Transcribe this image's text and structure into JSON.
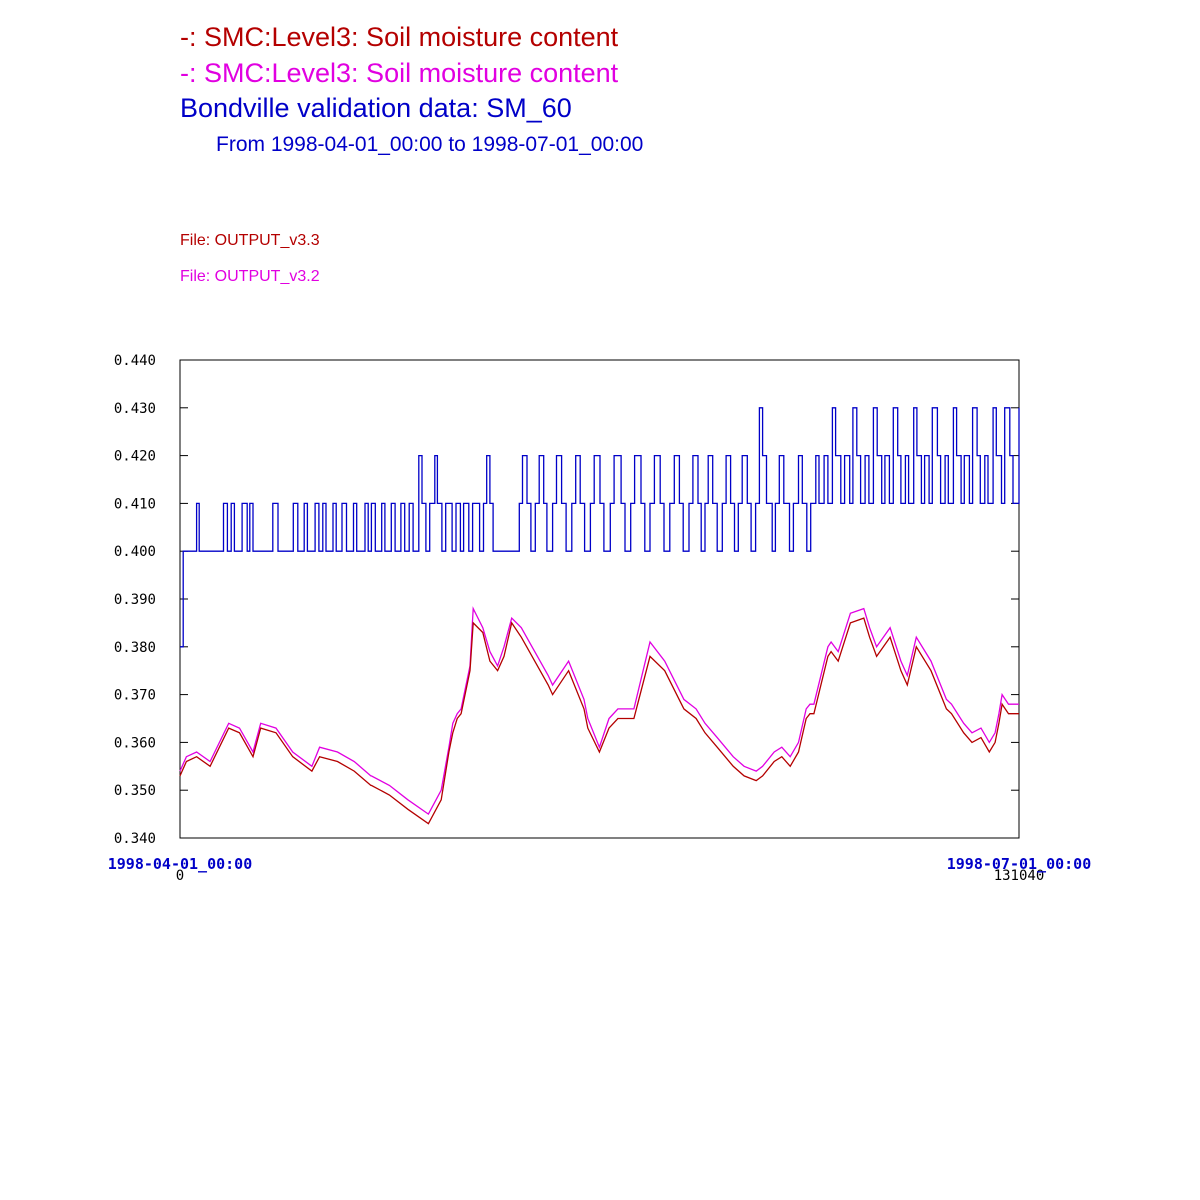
{
  "colors": {
    "v33": "#b40000",
    "v32": "#e100e1",
    "obs": "#0000c8",
    "axis": "#000000"
  },
  "header": {
    "line1": "-:  SMC:Level3: Soil moisture content",
    "line2": "-:  SMC:Level3: Soil moisture content",
    "line3": "Bondville validation data:  SM_60",
    "line4": "From 1998-04-01_00:00 to 1998-07-01_00:00",
    "file1": "File: OUTPUT_v3.3",
    "file2": "File: OUTPUT_v3.2"
  },
  "chart_data": {
    "type": "line",
    "xlim": [
      0,
      131040
    ],
    "ylim": [
      0.34,
      0.44
    ],
    "x_start_label": "1998-04-01_00:00",
    "x_end_label": "1998-07-01_00:00",
    "x_start_tick": "0",
    "x_end_tick": "131040",
    "y_ticks": [
      "0.340",
      "0.350",
      "0.360",
      "0.370",
      "0.380",
      "0.390",
      "0.400",
      "0.410",
      "0.420",
      "0.430",
      "0.440"
    ],
    "grid": false,
    "series": [
      {
        "name": "File: OUTPUT_v3.3",
        "color": "#b40000",
        "x": [
          0,
          1000,
          2600,
          4700,
          7600,
          9300,
          11400,
          12600,
          15000,
          17600,
          20600,
          21800,
          24600,
          27200,
          29800,
          29900,
          32700,
          35600,
          38800,
          40800,
          42000,
          42600,
          43300,
          43900,
          45300,
          45800,
          47300,
          48400,
          49600,
          50600,
          51800,
          53300,
          57500,
          58200,
          60700,
          63100,
          63700,
          65500,
          67000,
          68400,
          70900,
          73400,
          75700,
          78700,
          80600,
          82000,
          83900,
          86400,
          88100,
          90000,
          91000,
          92800,
          94000,
          95300,
          96600,
          97800,
          98400,
          99000,
          101200,
          101700,
          102800,
          104700,
          106800,
          107700,
          108800,
          110900,
          112600,
          113600,
          115000,
          117300,
          119700,
          120500,
          122400,
          123700,
          125100,
          126400,
          127300,
          127900,
          128400,
          129400,
          131040
        ],
        "y": [
          0.353,
          0.356,
          0.357,
          0.355,
          0.363,
          0.362,
          0.357,
          0.363,
          0.362,
          0.357,
          0.354,
          0.357,
          0.356,
          0.354,
          0.351,
          0.351,
          0.349,
          0.346,
          0.343,
          0.348,
          0.358,
          0.362,
          0.365,
          0.366,
          0.375,
          0.385,
          0.383,
          0.377,
          0.375,
          0.378,
          0.385,
          0.382,
          0.372,
          0.37,
          0.375,
          0.367,
          0.363,
          0.358,
          0.363,
          0.365,
          0.365,
          0.378,
          0.375,
          0.367,
          0.365,
          0.362,
          0.359,
          0.355,
          0.353,
          0.352,
          0.353,
          0.356,
          0.357,
          0.355,
          0.358,
          0.365,
          0.366,
          0.366,
          0.378,
          0.379,
          0.377,
          0.385,
          0.386,
          0.382,
          0.378,
          0.382,
          0.375,
          0.372,
          0.38,
          0.375,
          0.367,
          0.366,
          0.362,
          0.36,
          0.361,
          0.358,
          0.36,
          0.364,
          0.368,
          0.366,
          0.366
        ]
      },
      {
        "name": "File: OUTPUT_v3.2",
        "color": "#e100e1",
        "x": [
          0,
          1000,
          2600,
          4700,
          7600,
          9300,
          11400,
          12600,
          15000,
          17600,
          20600,
          21800,
          24600,
          27200,
          29800,
          29900,
          32700,
          35600,
          38800,
          40800,
          42000,
          42600,
          43300,
          43900,
          45300,
          45800,
          47300,
          48400,
          49600,
          50600,
          51800,
          53300,
          57500,
          58200,
          60700,
          63100,
          63700,
          65500,
          67000,
          68400,
          70900,
          73400,
          75700,
          78700,
          80600,
          82000,
          83900,
          86400,
          88100,
          90000,
          91000,
          92800,
          94000,
          95300,
          96600,
          97800,
          98400,
          99000,
          101200,
          101700,
          102800,
          104700,
          106800,
          107700,
          108800,
          110900,
          112600,
          113600,
          115000,
          117300,
          119700,
          120500,
          122400,
          123700,
          125100,
          126400,
          127300,
          127900,
          128400,
          129400,
          131040
        ],
        "y": [
          0.354,
          0.357,
          0.358,
          0.356,
          0.364,
          0.363,
          0.358,
          0.364,
          0.363,
          0.358,
          0.355,
          0.359,
          0.358,
          0.356,
          0.353,
          0.353,
          0.351,
          0.348,
          0.345,
          0.35,
          0.359,
          0.364,
          0.366,
          0.367,
          0.376,
          0.388,
          0.384,
          0.379,
          0.376,
          0.38,
          0.386,
          0.384,
          0.374,
          0.372,
          0.377,
          0.369,
          0.365,
          0.359,
          0.365,
          0.367,
          0.367,
          0.381,
          0.377,
          0.369,
          0.367,
          0.364,
          0.361,
          0.357,
          0.355,
          0.354,
          0.355,
          0.358,
          0.359,
          0.357,
          0.36,
          0.367,
          0.368,
          0.368,
          0.38,
          0.381,
          0.379,
          0.387,
          0.388,
          0.384,
          0.38,
          0.384,
          0.377,
          0.374,
          0.382,
          0.377,
          0.369,
          0.368,
          0.364,
          0.362,
          0.363,
          0.36,
          0.362,
          0.366,
          0.37,
          0.368,
          0.368
        ]
      },
      {
        "name": "Bondville validation data:  SM_60",
        "color": "#0000c8",
        "step": true,
        "x": [
          0,
          500,
          900,
          2600,
          3000,
          6800,
          7400,
          8000,
          8500,
          9700,
          10500,
          10900,
          11400,
          14500,
          15300,
          17700,
          18400,
          19400,
          19900,
          21100,
          21700,
          22300,
          22800,
          23900,
          24400,
          25300,
          26000,
          27100,
          27600,
          28900,
          29400,
          29900,
          30500,
          31500,
          32000,
          33000,
          33600,
          34500,
          35100,
          35800,
          36400,
          37300,
          37800,
          38400,
          39000,
          39800,
          40200,
          40900,
          41500,
          42500,
          43100,
          43800,
          44300,
          45100,
          45700,
          46800,
          47400,
          47900,
          48400,
          48900,
          53000,
          53500,
          54200,
          54800,
          55500,
          56100,
          56800,
          57300,
          58200,
          58800,
          59600,
          60300,
          61200,
          61800,
          62500,
          63200,
          64100,
          64700,
          65600,
          66200,
          67200,
          67800,
          68900,
          69500,
          70400,
          71000,
          72000,
          72600,
          73400,
          74100,
          75000,
          75600,
          76500,
          77200,
          78000,
          78600,
          79500,
          80100,
          80900,
          81400,
          82000,
          82500,
          83200,
          83900,
          84700,
          85300,
          86000,
          86600,
          87200,
          87800,
          88600,
          89200,
          89900,
          90500,
          91000,
          91600,
          92500,
          93000,
          93600,
          94300,
          95200,
          95800,
          96600,
          97200,
          97900,
          98500,
          99300,
          99800,
          100600,
          101200,
          101900,
          102400,
          103200,
          103800,
          104600,
          105100,
          105700,
          106300,
          107000,
          107600,
          108300,
          108900,
          109600,
          110100,
          110800,
          111400,
          112100,
          112600,
          113300,
          113800,
          114600,
          115100,
          115800,
          116300,
          117000,
          117500,
          118300,
          118800,
          119500,
          120000,
          120800,
          121300,
          122000,
          122500,
          123300,
          123800,
          124500,
          125000,
          125700,
          126200,
          127000,
          127500,
          128300,
          128800,
          129600,
          130100,
          131040
        ],
        "y": [
          0.38,
          0.4,
          0.4,
          0.41,
          0.4,
          0.41,
          0.4,
          0.41,
          0.4,
          0.41,
          0.4,
          0.41,
          0.4,
          0.41,
          0.4,
          0.41,
          0.4,
          0.41,
          0.4,
          0.41,
          0.4,
          0.41,
          0.4,
          0.41,
          0.4,
          0.41,
          0.4,
          0.41,
          0.4,
          0.41,
          0.4,
          0.41,
          0.4,
          0.41,
          0.4,
          0.41,
          0.4,
          0.41,
          0.4,
          0.41,
          0.4,
          0.42,
          0.41,
          0.4,
          0.41,
          0.42,
          0.41,
          0.4,
          0.41,
          0.4,
          0.41,
          0.4,
          0.41,
          0.4,
          0.41,
          0.4,
          0.41,
          0.42,
          0.41,
          0.4,
          0.41,
          0.42,
          0.41,
          0.4,
          0.41,
          0.42,
          0.41,
          0.4,
          0.41,
          0.42,
          0.41,
          0.4,
          0.41,
          0.42,
          0.41,
          0.4,
          0.41,
          0.42,
          0.41,
          0.4,
          0.41,
          0.42,
          0.41,
          0.4,
          0.41,
          0.42,
          0.41,
          0.4,
          0.41,
          0.42,
          0.41,
          0.4,
          0.41,
          0.42,
          0.41,
          0.4,
          0.41,
          0.42,
          0.41,
          0.4,
          0.41,
          0.42,
          0.41,
          0.4,
          0.41,
          0.42,
          0.41,
          0.4,
          0.41,
          0.42,
          0.41,
          0.4,
          0.41,
          0.43,
          0.42,
          0.41,
          0.4,
          0.41,
          0.42,
          0.41,
          0.4,
          0.41,
          0.42,
          0.41,
          0.4,
          0.41,
          0.42,
          0.41,
          0.42,
          0.41,
          0.43,
          0.42,
          0.41,
          0.42,
          0.41,
          0.43,
          0.42,
          0.41,
          0.42,
          0.41,
          0.43,
          0.42,
          0.41,
          0.42,
          0.41,
          0.43,
          0.42,
          0.41,
          0.42,
          0.41,
          0.43,
          0.42,
          0.41,
          0.42,
          0.41,
          0.43,
          0.42,
          0.41,
          0.42,
          0.41,
          0.43,
          0.42,
          0.41,
          0.42,
          0.41,
          0.43,
          0.42,
          0.41,
          0.42,
          0.41,
          0.43,
          0.42,
          0.41,
          0.43,
          0.42,
          0.41,
          0.43
        ]
      }
    ]
  }
}
